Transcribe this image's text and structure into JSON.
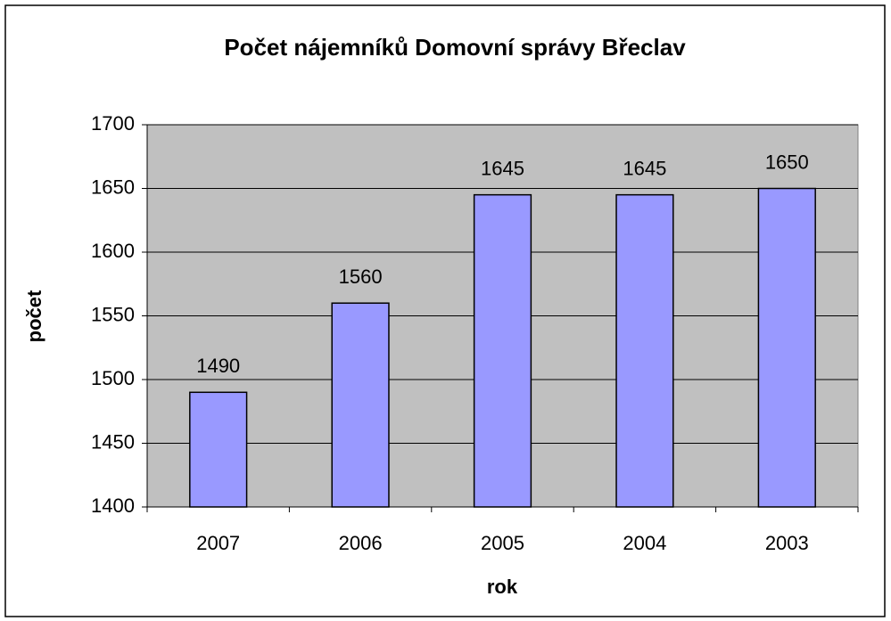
{
  "chart_data": {
    "type": "bar",
    "title": "Počet nájemníků Domovní správy Břeclav",
    "xlabel": "rok",
    "ylabel": "počet",
    "categories": [
      "2007",
      "2006",
      "2005",
      "2004",
      "2003"
    ],
    "values": [
      1490,
      1560,
      1645,
      1645,
      1650
    ],
    "color": "#9999ff",
    "ylim": [
      1400,
      1700
    ],
    "yticks": [
      1400,
      1450,
      1500,
      1550,
      1600,
      1650,
      1700
    ],
    "grid": true
  }
}
